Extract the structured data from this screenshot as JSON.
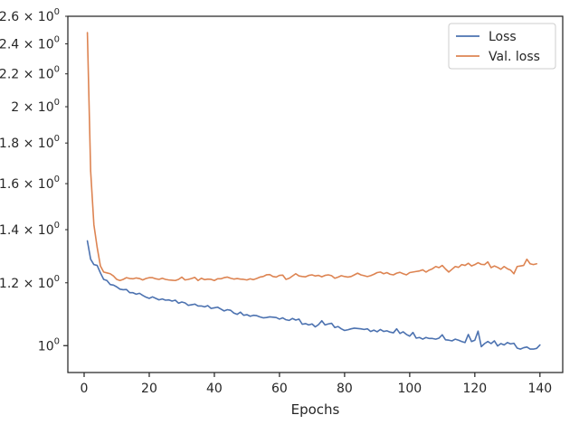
{
  "chart_data": {
    "type": "line",
    "title": "",
    "xlabel": "Epochs",
    "ylabel": "",
    "y_scale": "log",
    "xlim": [
      -5,
      147
    ],
    "ylim": [
      0.925,
      2.6
    ],
    "grid": false,
    "legend_position": "top-right",
    "x_ticks": [
      {
        "value": 0,
        "label": "0"
      },
      {
        "value": 20,
        "label": "20"
      },
      {
        "value": 40,
        "label": "40"
      },
      {
        "value": 60,
        "label": "60"
      },
      {
        "value": 80,
        "label": "80"
      },
      {
        "value": 100,
        "label": "100"
      },
      {
        "value": 120,
        "label": "120"
      },
      {
        "value": 140,
        "label": "140"
      }
    ],
    "y_ticks": [
      {
        "value": 1.0,
        "base": "10",
        "exp": "0"
      },
      {
        "value": 1.2,
        "base": "1.2 × 10",
        "exp": "0"
      },
      {
        "value": 1.4,
        "base": "1.4 × 10",
        "exp": "0"
      },
      {
        "value": 1.6,
        "base": "1.6 × 10",
        "exp": "0"
      },
      {
        "value": 1.8,
        "base": "1.8 × 10",
        "exp": "0"
      },
      {
        "value": 2.0,
        "base": "2 × 10",
        "exp": "0"
      },
      {
        "value": 2.2,
        "base": "2.2 × 10",
        "exp": "0"
      },
      {
        "value": 2.4,
        "base": "2.4 × 10",
        "exp": "0"
      },
      {
        "value": 2.6,
        "base": "2.6 × 10",
        "exp": "0"
      }
    ],
    "series": [
      {
        "name": "Loss",
        "color": "#4c72b0",
        "x_start": 1,
        "values": [
          1.355,
          1.285,
          1.265,
          1.262,
          1.235,
          1.212,
          1.208,
          1.194,
          1.192,
          1.186,
          1.178,
          1.176,
          1.177,
          1.166,
          1.166,
          1.161,
          1.164,
          1.157,
          1.151,
          1.147,
          1.152,
          1.147,
          1.142,
          1.145,
          1.141,
          1.142,
          1.138,
          1.141,
          1.131,
          1.135,
          1.132,
          1.124,
          1.126,
          1.128,
          1.122,
          1.122,
          1.119,
          1.123,
          1.114,
          1.116,
          1.118,
          1.112,
          1.106,
          1.11,
          1.108,
          1.099,
          1.095,
          1.102,
          1.092,
          1.094,
          1.089,
          1.092,
          1.091,
          1.087,
          1.084,
          1.085,
          1.087,
          1.086,
          1.085,
          1.08,
          1.084,
          1.078,
          1.076,
          1.082,
          1.077,
          1.08,
          1.064,
          1.066,
          1.062,
          1.065,
          1.056,
          1.063,
          1.075,
          1.062,
          1.065,
          1.067,
          1.054,
          1.057,
          1.05,
          1.045,
          1.047,
          1.05,
          1.052,
          1.051,
          1.05,
          1.048,
          1.05,
          1.042,
          1.046,
          1.041,
          1.048,
          1.042,
          1.044,
          1.04,
          1.038,
          1.05,
          1.036,
          1.041,
          1.033,
          1.028,
          1.039,
          1.022,
          1.024,
          1.019,
          1.024,
          1.021,
          1.021,
          1.019,
          1.022,
          1.032,
          1.017,
          1.016,
          1.014,
          1.019,
          1.016,
          1.012,
          1.009,
          1.033,
          1.012,
          1.016,
          1.043,
          0.997,
          1.006,
          1.012,
          1.006,
          1.014,
          0.999,
          1.006,
          1.002,
          1.009,
          1.005,
          1.007,
          0.993,
          0.99,
          0.994,
          0.996,
          0.99,
          0.99,
          0.992,
          1.002
        ]
      },
      {
        "name": "Val. loss",
        "color": "#dd8452",
        "x_start": 1,
        "values": [
          2.48,
          1.66,
          1.42,
          1.33,
          1.26,
          1.238,
          1.235,
          1.232,
          1.224,
          1.212,
          1.208,
          1.212,
          1.218,
          1.215,
          1.214,
          1.217,
          1.215,
          1.21,
          1.215,
          1.218,
          1.218,
          1.214,
          1.212,
          1.216,
          1.212,
          1.21,
          1.209,
          1.208,
          1.212,
          1.22,
          1.21,
          1.212,
          1.215,
          1.219,
          1.208,
          1.216,
          1.211,
          1.213,
          1.212,
          1.208,
          1.214,
          1.214,
          1.218,
          1.22,
          1.216,
          1.213,
          1.215,
          1.213,
          1.212,
          1.21,
          1.214,
          1.211,
          1.215,
          1.22,
          1.222,
          1.228,
          1.229,
          1.222,
          1.22,
          1.226,
          1.227,
          1.212,
          1.216,
          1.224,
          1.232,
          1.224,
          1.222,
          1.221,
          1.226,
          1.228,
          1.224,
          1.226,
          1.221,
          1.226,
          1.228,
          1.225,
          1.216,
          1.22,
          1.225,
          1.222,
          1.22,
          1.222,
          1.228,
          1.234,
          1.228,
          1.225,
          1.222,
          1.225,
          1.23,
          1.236,
          1.238,
          1.232,
          1.236,
          1.23,
          1.228,
          1.234,
          1.237,
          1.232,
          1.228,
          1.236,
          1.238,
          1.24,
          1.242,
          1.246,
          1.238,
          1.245,
          1.25,
          1.258,
          1.254,
          1.262,
          1.249,
          1.238,
          1.248,
          1.258,
          1.255,
          1.265,
          1.262,
          1.27,
          1.26,
          1.265,
          1.272,
          1.266,
          1.265,
          1.275,
          1.254,
          1.26,
          1.255,
          1.248,
          1.258,
          1.25,
          1.245,
          1.232,
          1.258,
          1.26,
          1.262,
          1.285,
          1.268,
          1.265,
          1.268
        ]
      }
    ]
  }
}
